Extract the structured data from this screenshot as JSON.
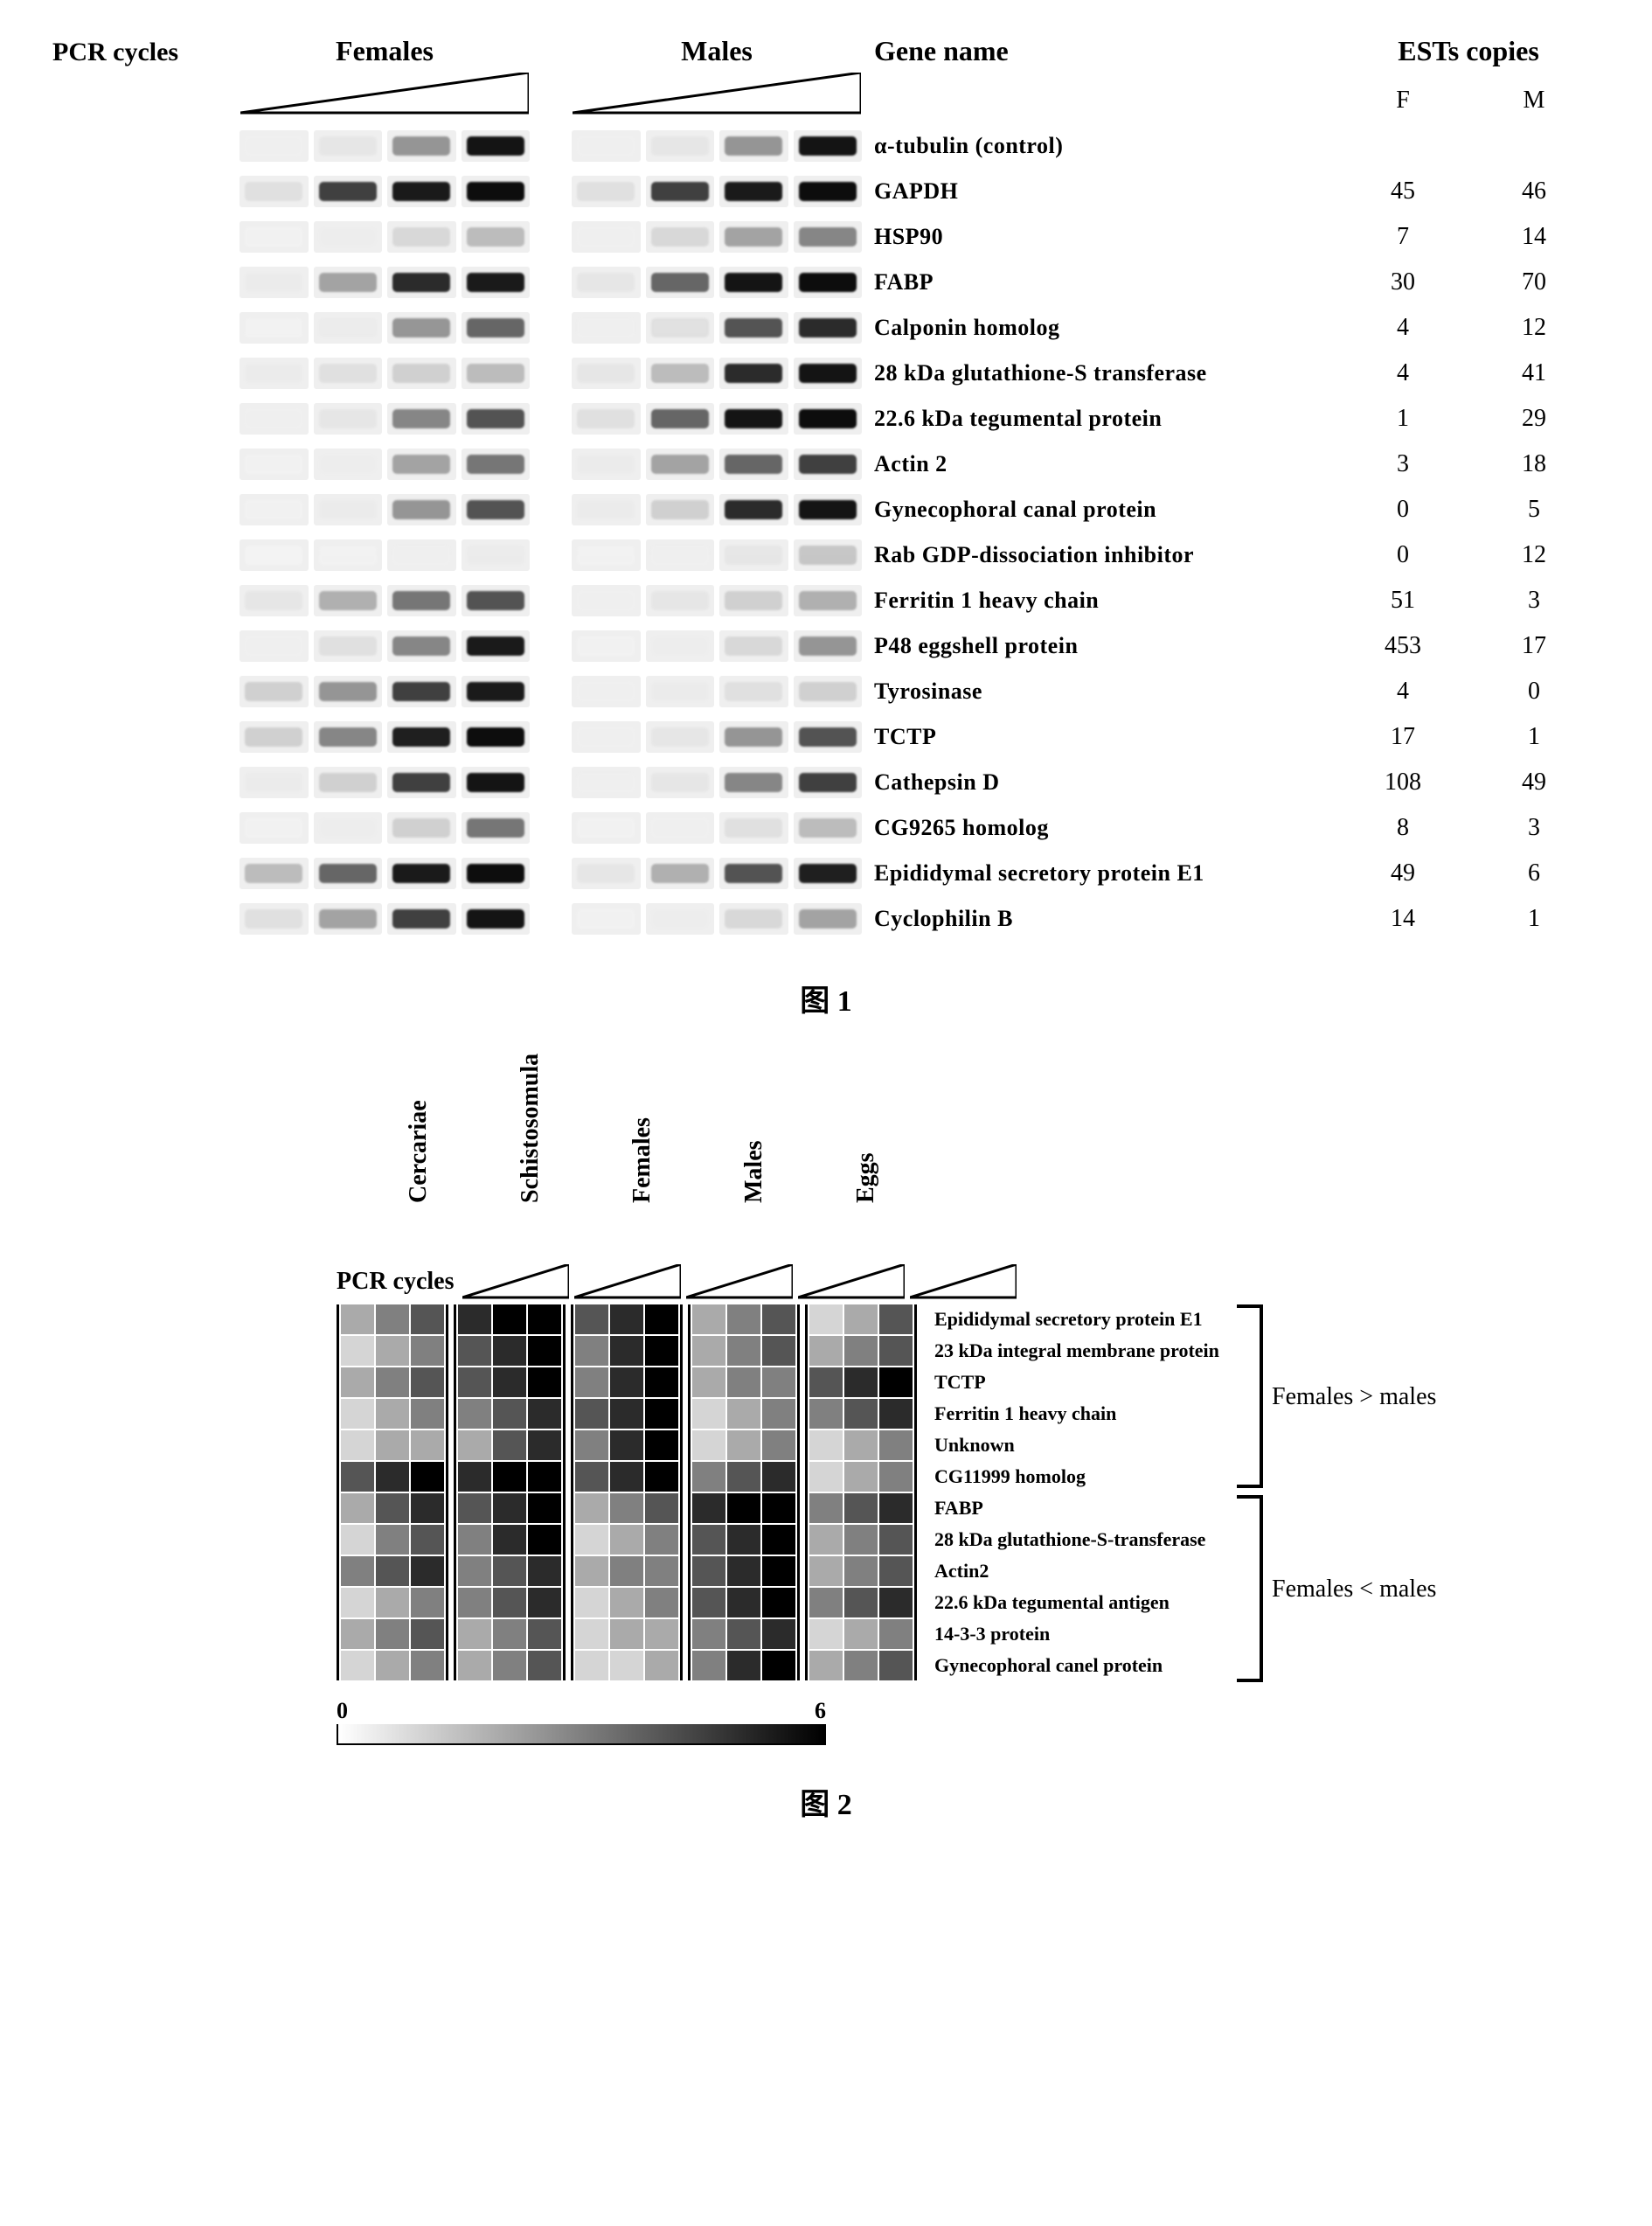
{
  "figure1": {
    "pcr_label": "PCR cycles",
    "female_header": "Females",
    "male_header": "Males",
    "gene_header": "Gene name",
    "est_header": "ESTs copies",
    "est_f": "F",
    "est_m": "M",
    "caption": "图 1",
    "wedge_stroke": "#000000",
    "wedge_fill": "#ffffff",
    "band_bg": "#efefef",
    "rows": [
      {
        "gene": "α-tubulin (control)",
        "f": "",
        "m": "",
        "bands_f": [
          5,
          15,
          55,
          92
        ],
        "bands_m": [
          5,
          15,
          55,
          92
        ]
      },
      {
        "gene": "GAPDH",
        "f": "45",
        "m": "46",
        "bands_f": [
          20,
          80,
          90,
          95
        ],
        "bands_m": [
          20,
          80,
          90,
          95
        ]
      },
      {
        "gene": "HSP90",
        "f": "7",
        "m": "14",
        "bands_f": [
          2,
          8,
          25,
          40
        ],
        "bands_m": [
          5,
          25,
          50,
          60
        ]
      },
      {
        "gene": "FABP",
        "f": "30",
        "m": "70",
        "bands_f": [
          10,
          50,
          85,
          90
        ],
        "bands_m": [
          15,
          70,
          92,
          95
        ]
      },
      {
        "gene": "Calponin homolog",
        "f": "4",
        "m": "12",
        "bands_f": [
          2,
          10,
          55,
          70
        ],
        "bands_m": [
          5,
          20,
          75,
          85
        ]
      },
      {
        "gene": "28 kDa glutathione-S transferase",
        "f": "4",
        "m": "41",
        "bands_f": [
          10,
          20,
          30,
          40
        ],
        "bands_m": [
          15,
          40,
          85,
          92
        ]
      },
      {
        "gene": "22.6 kDa tegumental protein",
        "f": "1",
        "m": "29",
        "bands_f": [
          5,
          15,
          60,
          75
        ],
        "bands_m": [
          20,
          70,
          92,
          95
        ]
      },
      {
        "gene": "Actin 2",
        "f": "3",
        "m": "18",
        "bands_f": [
          2,
          8,
          50,
          65
        ],
        "bands_m": [
          10,
          50,
          70,
          80
        ]
      },
      {
        "gene": "Gynecophoral canal protein",
        "f": "0",
        "m": "5",
        "bands_f": [
          2,
          10,
          55,
          75
        ],
        "bands_m": [
          10,
          30,
          85,
          92
        ]
      },
      {
        "gene": "Rab GDP-dissociation inhibitor",
        "f": "0",
        "m": "12",
        "bands_f": [
          0,
          2,
          5,
          10
        ],
        "bands_m": [
          2,
          5,
          15,
          35
        ]
      },
      {
        "gene": "Ferritin 1 heavy chain",
        "f": "51",
        "m": "3",
        "bands_f": [
          15,
          45,
          65,
          75
        ],
        "bands_m": [
          5,
          15,
          30,
          45
        ]
      },
      {
        "gene": "P48 eggshell protein",
        "f": "453",
        "m": "17",
        "bands_f": [
          5,
          20,
          60,
          90
        ],
        "bands_m": [
          2,
          8,
          25,
          55
        ]
      },
      {
        "gene": "Tyrosinase",
        "f": "4",
        "m": "0",
        "bands_f": [
          30,
          55,
          80,
          90
        ],
        "bands_m": [
          5,
          10,
          20,
          30
        ]
      },
      {
        "gene": "TCTP",
        "f": "17",
        "m": "1",
        "bands_f": [
          30,
          60,
          88,
          95
        ],
        "bands_m": [
          5,
          15,
          55,
          75
        ]
      },
      {
        "gene": "Cathepsin D",
        "f": "108",
        "m": "49",
        "bands_f": [
          10,
          30,
          80,
          92
        ],
        "bands_m": [
          5,
          15,
          60,
          80
        ]
      },
      {
        "gene": "CG9265 homolog",
        "f": "8",
        "m": "3",
        "bands_f": [
          2,
          8,
          30,
          65
        ],
        "bands_m": [
          2,
          5,
          20,
          40
        ]
      },
      {
        "gene": "Epididymal secretory protein E1",
        "f": "49",
        "m": "6",
        "bands_f": [
          40,
          70,
          90,
          95
        ],
        "bands_m": [
          15,
          45,
          75,
          88
        ]
      },
      {
        "gene": "Cyclophilin B",
        "f": "14",
        "m": "1",
        "bands_f": [
          20,
          50,
          80,
          92
        ],
        "bands_m": [
          2,
          8,
          25,
          50
        ]
      }
    ]
  },
  "figure2": {
    "pcr_label": "PCR cycles",
    "caption": "图 2",
    "stages": [
      "Cercariae",
      "Schistosomula",
      "Females",
      "Males",
      "Eggs"
    ],
    "group_a_label": "Females > males",
    "group_b_label": "Females < males",
    "scale_min": "0",
    "scale_max": "6",
    "color_min": "#ffffff",
    "color_max": "#000000",
    "labels": [
      "Epididymal secretory protein E1",
      "23 kDa integral membrane protein",
      "TCTP",
      "Ferritin 1 heavy chain",
      "Unknown",
      "CG11999 homolog",
      "FABP",
      "28 kDa glutathione-S-transferase",
      "Actin2",
      "22.6 kDa tegumental antigen",
      "14-3-3 protein",
      "Gynecophoral canel protein"
    ],
    "heat": [
      [
        [
          2,
          3,
          4
        ],
        [
          5,
          6,
          6
        ],
        [
          4,
          5,
          6
        ],
        [
          2,
          3,
          4
        ],
        [
          1,
          2,
          4
        ]
      ],
      [
        [
          1,
          2,
          3
        ],
        [
          4,
          5,
          6
        ],
        [
          3,
          5,
          6
        ],
        [
          2,
          3,
          4
        ],
        [
          2,
          3,
          4
        ]
      ],
      [
        [
          2,
          3,
          4
        ],
        [
          4,
          5,
          6
        ],
        [
          3,
          5,
          6
        ],
        [
          2,
          3,
          3
        ],
        [
          4,
          5,
          6
        ]
      ],
      [
        [
          1,
          2,
          3
        ],
        [
          3,
          4,
          5
        ],
        [
          4,
          5,
          6
        ],
        [
          1,
          2,
          3
        ],
        [
          3,
          4,
          5
        ]
      ],
      [
        [
          1,
          2,
          2
        ],
        [
          2,
          4,
          5
        ],
        [
          3,
          5,
          6
        ],
        [
          1,
          2,
          3
        ],
        [
          1,
          2,
          3
        ]
      ],
      [
        [
          4,
          5,
          6
        ],
        [
          5,
          6,
          6
        ],
        [
          4,
          5,
          6
        ],
        [
          3,
          4,
          5
        ],
        [
          1,
          2,
          3
        ]
      ],
      [
        [
          2,
          4,
          5
        ],
        [
          4,
          5,
          6
        ],
        [
          2,
          3,
          4
        ],
        [
          5,
          6,
          6
        ],
        [
          3,
          4,
          5
        ]
      ],
      [
        [
          1,
          3,
          4
        ],
        [
          3,
          5,
          6
        ],
        [
          1,
          2,
          3
        ],
        [
          4,
          5,
          6
        ],
        [
          2,
          3,
          4
        ]
      ],
      [
        [
          3,
          4,
          5
        ],
        [
          3,
          4,
          5
        ],
        [
          2,
          3,
          3
        ],
        [
          4,
          5,
          6
        ],
        [
          2,
          3,
          4
        ]
      ],
      [
        [
          1,
          2,
          3
        ],
        [
          3,
          4,
          5
        ],
        [
          1,
          2,
          3
        ],
        [
          4,
          5,
          6
        ],
        [
          3,
          4,
          5
        ]
      ],
      [
        [
          2,
          3,
          4
        ],
        [
          2,
          3,
          4
        ],
        [
          1,
          2,
          2
        ],
        [
          3,
          4,
          5
        ],
        [
          1,
          2,
          3
        ]
      ],
      [
        [
          1,
          2,
          3
        ],
        [
          2,
          3,
          4
        ],
        [
          1,
          1,
          2
        ],
        [
          3,
          5,
          6
        ],
        [
          2,
          3,
          4
        ]
      ]
    ]
  }
}
